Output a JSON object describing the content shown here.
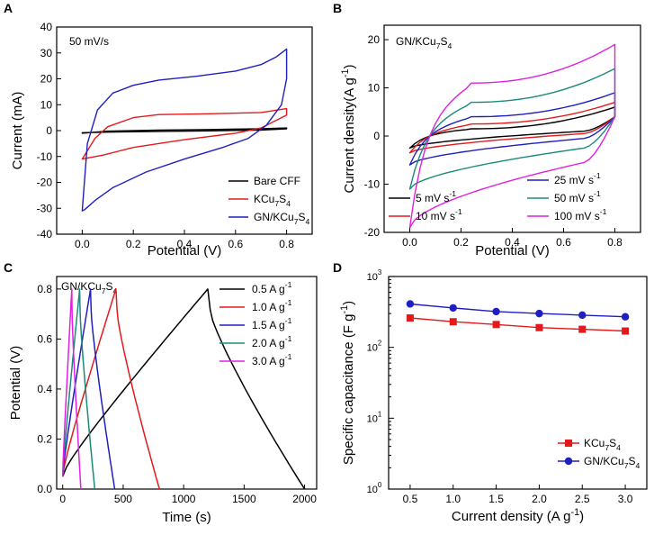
{
  "chart_data": [
    {
      "panel": "A",
      "type": "line",
      "annotation": "50 mV/s",
      "xlabel": "Potential (V)",
      "ylabel": "Current (mA)",
      "xlim": [
        -0.1,
        0.9
      ],
      "ylim": [
        -40,
        40
      ],
      "xticks": [
        0.0,
        0.2,
        0.4,
        0.6,
        0.8
      ],
      "xtick_labels": [
        "0.0",
        "0.2",
        "0.4",
        "0.6",
        "0.8"
      ],
      "yticks": [
        -40,
        -30,
        -20,
        -10,
        0,
        10,
        20,
        30,
        40
      ],
      "ytick_labels": [
        "-40",
        "-30",
        "-20",
        "-10",
        "0",
        "10",
        "20",
        "30",
        "40"
      ],
      "legend_position": "bottom-right",
      "series": [
        {
          "name": "Bare CFF",
          "label_main": "Bare CFF",
          "color": "#000000",
          "x": [
            0.0,
            0.1,
            0.3,
            0.5,
            0.7,
            0.8,
            0.8,
            0.7,
            0.5,
            0.3,
            0.1,
            0.0,
            0.0
          ],
          "y": [
            -1.0,
            -0.2,
            0.2,
            0.4,
            0.7,
            1.0,
            0.7,
            0.2,
            -0.1,
            -0.3,
            -0.6,
            -0.8,
            -1.0
          ]
        },
        {
          "name": "KCu7S4",
          "label_main": "KCu",
          "label_sub1": "7",
          "label_mid": "S",
          "label_sub2": "4",
          "color": "#e31a1c",
          "x": [
            0.0,
            0.05,
            0.1,
            0.2,
            0.3,
            0.5,
            0.7,
            0.78,
            0.8,
            0.8,
            0.7,
            0.6,
            0.4,
            0.2,
            0.08,
            0.0,
            0.0
          ],
          "y": [
            -11.0,
            -3.0,
            1.5,
            5.0,
            6.2,
            6.5,
            7.0,
            8.2,
            8.5,
            6.0,
            1.0,
            -1.0,
            -3.5,
            -6.5,
            -9.5,
            -11.0,
            -11.0
          ]
        },
        {
          "name": "GN/KCu7S4",
          "label_main": "GN/KCu",
          "label_sub1": "7",
          "label_mid": "S",
          "label_sub2": "4",
          "color": "#1f1fbf",
          "x": [
            0.0,
            0.02,
            0.06,
            0.12,
            0.2,
            0.3,
            0.45,
            0.6,
            0.7,
            0.76,
            0.8,
            0.8,
            0.78,
            0.72,
            0.65,
            0.55,
            0.4,
            0.25,
            0.12,
            0.05,
            0.01,
            0.0
          ],
          "y": [
            -31.0,
            -5.0,
            8.0,
            14.5,
            17.5,
            19.5,
            21.0,
            23.0,
            25.5,
            28.5,
            31.5,
            20.0,
            10.0,
            2.0,
            -3.0,
            -6.5,
            -11.0,
            -16.0,
            -22.0,
            -27.0,
            -30.5,
            -31.0
          ]
        }
      ]
    },
    {
      "panel": "B",
      "type": "line",
      "annotation_main": "GN/KCu",
      "annotation_sub1": "7",
      "annotation_mid": "S",
      "annotation_sub2": "4",
      "xlabel": "Potential (V)",
      "ylabel_main": "Current density(A g",
      "ylabel_sup": "-1",
      "ylabel_end": ")",
      "xlim": [
        -0.1,
        0.9
      ],
      "ylim": [
        -20,
        23
      ],
      "xticks": [
        0.0,
        0.2,
        0.4,
        0.6,
        0.8
      ],
      "xtick_labels": [
        "0.0",
        "0.2",
        "0.4",
        "0.6",
        "0.8"
      ],
      "yticks": [
        -20,
        -10,
        0,
        10,
        20
      ],
      "ytick_labels": [
        "-20",
        "-10",
        "0",
        "10",
        "20"
      ],
      "legend_position": "bottom",
      "unit_main": "mV s",
      "unit_sup": "-1",
      "series": [
        {
          "name": "5 mV s-1",
          "rate": "5",
          "color": "#000000",
          "top_start": 0.5,
          "top_mid": 1.5,
          "top_end": 6.0,
          "bottom_start": -2.5,
          "bottom_mid": -0.5,
          "bottom_end": 4.0
        },
        {
          "name": "10 mV s-1",
          "rate": "10",
          "color": "#e31a1c",
          "top_start": 0.5,
          "top_mid": 2.5,
          "top_end": 7.0,
          "bottom_start": -3.5,
          "bottom_mid": -1.0,
          "bottom_end": 4.0
        },
        {
          "name": "25 mV s-1",
          "rate": "25",
          "color": "#1f1fbf",
          "top_start": 1.0,
          "top_mid": 4.0,
          "top_end": 9.0,
          "bottom_start": -6.0,
          "bottom_mid": -2.0,
          "bottom_end": 4.0
        },
        {
          "name": "50 mV s-1",
          "rate": "50",
          "color": "#1b8a7a",
          "top_start": 2.0,
          "top_mid": 7.0,
          "top_end": 14.0,
          "bottom_start": -11.0,
          "bottom_mid": -4.0,
          "bottom_end": 4.0
        },
        {
          "name": "100 mV s-1",
          "rate": "100",
          "color": "#e020e0",
          "top_start": 4.0,
          "top_mid": 11.0,
          "top_end": 19.0,
          "bottom_start": -19.0,
          "bottom_mid": -7.0,
          "bottom_end": 4.0
        }
      ]
    },
    {
      "panel": "C",
      "type": "line",
      "annotation_main": "GN/KCu",
      "annotation_sub1": "7",
      "annotation_mid": "S",
      "annotation_sub2": "4",
      "xlabel": "Time (s)",
      "ylabel": "Potential (V)",
      "xlim": [
        -50,
        2100
      ],
      "ylim": [
        0.0,
        0.85
      ],
      "xticks": [
        0,
        500,
        1000,
        1500,
        2000
      ],
      "xtick_labels": [
        "0",
        "500",
        "1000",
        "1500",
        "2000"
      ],
      "yticks": [
        0.0,
        0.2,
        0.4,
        0.6,
        0.8
      ],
      "ytick_labels": [
        "0.0",
        "0.2",
        "0.4",
        "0.6",
        "0.8"
      ],
      "legend_position": "top-right",
      "unit_main": "A g",
      "unit_sup": "-1",
      "series": [
        {
          "name": "0.5 A g-1",
          "rate": "0.5",
          "color": "#000000",
          "charge_end": 1200,
          "discharge_end": 2000
        },
        {
          "name": "1.0 A g-1",
          "rate": "1.0",
          "color": "#e31a1c",
          "charge_end": 440,
          "discharge_end": 800
        },
        {
          "name": "1.5 A g-1",
          "rate": "1.5",
          "color": "#1f1fbf",
          "charge_end": 230,
          "discharge_end": 430
        },
        {
          "name": "2.0 A g-1",
          "rate": "2.0",
          "color": "#1b8a7a",
          "charge_end": 140,
          "discharge_end": 265
        },
        {
          "name": "3.0 A g-1",
          "rate": "3.0",
          "color": "#e020e0",
          "charge_end": 75,
          "discharge_end": 150
        }
      ]
    },
    {
      "panel": "D",
      "type": "line",
      "xlabel_main": "Current density (A g",
      "xlabel_sup": "-1",
      "xlabel_end": ")",
      "ylabel_main": "Specific capacitance (F g",
      "ylabel_sup": "-1",
      "ylabel_end": ")",
      "yscale": "log",
      "xlim": [
        0.25,
        3.25
      ],
      "ylim": [
        1,
        1000
      ],
      "xticks": [
        0.5,
        1.0,
        1.5,
        2.0,
        2.5,
        3.0
      ],
      "xtick_labels": [
        "0.5",
        "1.0",
        "1.5",
        "2.0",
        "2.5",
        "3.0"
      ],
      "yticks": [
        1,
        10,
        100,
        1000
      ],
      "ytick_base": "10",
      "ytick_exps": [
        "0",
        "1",
        "2",
        "3"
      ],
      "legend_position": "bottom-right",
      "x": [
        0.5,
        1.0,
        1.5,
        2.0,
        2.5,
        3.0
      ],
      "series": [
        {
          "name": "KCu7S4",
          "label_main": "KCu",
          "label_sub1": "7",
          "label_mid": "S",
          "label_sub2": "4",
          "color": "#e31a1c",
          "marker": "square",
          "values": [
            260,
            230,
            210,
            190,
            180,
            170
          ]
        },
        {
          "name": "GN/KCu7S4",
          "label_main": "GN/KCu",
          "label_sub1": "7",
          "label_mid": "S",
          "label_sub2": "4",
          "color": "#1f1fbf",
          "marker": "circle",
          "values": [
            410,
            360,
            320,
            300,
            285,
            270
          ]
        }
      ]
    }
  ]
}
